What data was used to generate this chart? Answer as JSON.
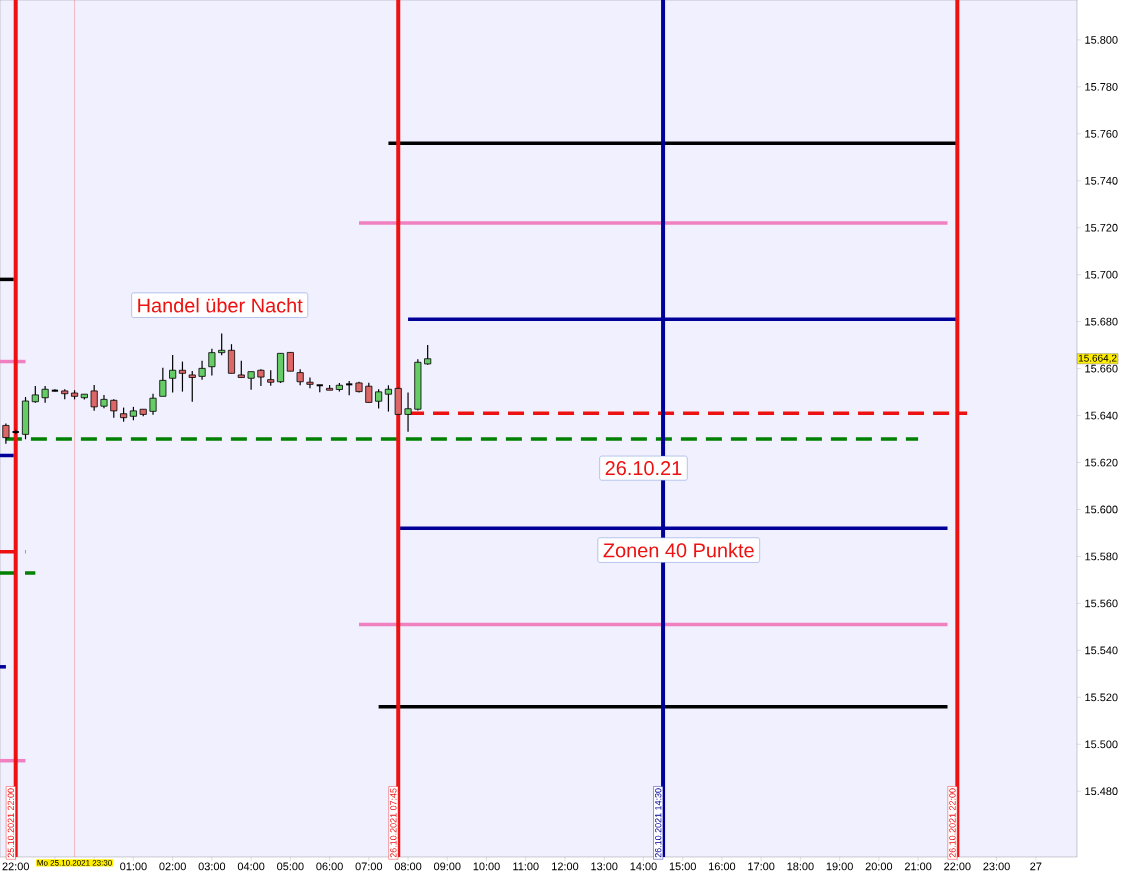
{
  "chart_data": {
    "type": "candlestick",
    "x": [
      "2021-10-25T21:45",
      "2021-10-25T22:00",
      "2021-10-25T22:15",
      "2021-10-25T22:30",
      "2021-10-25T22:45",
      "2021-10-25T23:00",
      "2021-10-25T23:15",
      "2021-10-25T23:30",
      "2021-10-25T23:45",
      "2021-10-26T00:00",
      "2021-10-26T00:15",
      "2021-10-26T00:30",
      "2021-10-26T00:45",
      "2021-10-26T01:00",
      "2021-10-26T01:15",
      "2021-10-26T01:30",
      "2021-10-26T01:45",
      "2021-10-26T02:00",
      "2021-10-26T02:15",
      "2021-10-26T02:30",
      "2021-10-26T02:45",
      "2021-10-26T03:00",
      "2021-10-26T03:15",
      "2021-10-26T03:30",
      "2021-10-26T03:45",
      "2021-10-26T04:00",
      "2021-10-26T04:15",
      "2021-10-26T04:30",
      "2021-10-26T04:45",
      "2021-10-26T05:00",
      "2021-10-26T05:15",
      "2021-10-26T05:30",
      "2021-10-26T05:45",
      "2021-10-26T06:00",
      "2021-10-26T06:15",
      "2021-10-26T06:30",
      "2021-10-26T06:45",
      "2021-10-26T07:00",
      "2021-10-26T07:15",
      "2021-10-26T07:30",
      "2021-10-26T07:45",
      "2021-10-26T08:00",
      "2021-10-26T08:15",
      "2021-10-26T08:30"
    ],
    "ohlc": [
      [
        15635.8,
        15636.6,
        15628,
        15630.6
      ],
      [
        15633,
        15634,
        15632,
        15633
      ],
      [
        15632,
        15647.9,
        15629.9,
        15646.2
      ],
      [
        15645.9,
        15652.6,
        15645.5,
        15648.8
      ],
      [
        15647.6,
        15652.6,
        15645.5,
        15651.2
      ],
      [
        15650.6,
        15651.2,
        15650.2,
        15650.4
      ],
      [
        15650.5,
        15651.2,
        15647,
        15649.3
      ],
      [
        15649.6,
        15650.8,
        15646.9,
        15648.2
      ],
      [
        15647.6,
        15649.1,
        15646.8,
        15649.1
      ],
      [
        15650.5,
        15653,
        15642,
        15643.7
      ],
      [
        15644,
        15648.8,
        15643.1,
        15646.9
      ],
      [
        15646.5,
        15646.9,
        15639.1,
        15642
      ],
      [
        15640.8,
        15643.4,
        15637.4,
        15639.1
      ],
      [
        15639.7,
        15643.7,
        15638,
        15642
      ],
      [
        15642.7,
        15642.7,
        15639.7,
        15640.5
      ],
      [
        15641.8,
        15649.3,
        15640.4,
        15647.4
      ],
      [
        15648.2,
        15660.4,
        15648.2,
        15655
      ],
      [
        15655.9,
        15665.8,
        15649.8,
        15659.3
      ],
      [
        15659.3,
        15663,
        15650.2,
        15658
      ],
      [
        15657.3,
        15659,
        15645.9,
        15656.2
      ],
      [
        15656.7,
        15663.3,
        15655.3,
        15660.1
      ],
      [
        15660.8,
        15668.5,
        15657.1,
        15666.8
      ],
      [
        15666.8,
        15675,
        15665.7,
        15667.8
      ],
      [
        15667.8,
        15670.4,
        15658,
        15658
      ],
      [
        15657.3,
        15663.3,
        15656.2,
        15656.2
      ],
      [
        15655.9,
        15658.7,
        15651,
        15658.7
      ],
      [
        15659.3,
        15659.7,
        15652.6,
        15656.4
      ],
      [
        15655.3,
        15659.3,
        15652.7,
        15654.2
      ],
      [
        15654.4,
        15666.5,
        15653.9,
        15666.5
      ],
      [
        15666.9,
        15666.9,
        15658.9,
        15658.9
      ],
      [
        15658.3,
        15659.7,
        15652.9,
        15654.4
      ],
      [
        15654.2,
        15656.2,
        15651.6,
        15653.3
      ],
      [
        15652.9,
        15652.9,
        15649.9,
        15652.8
      ],
      [
        15651.6,
        15653,
        15650.8,
        15650.8
      ],
      [
        15651.1,
        15653.9,
        15650.2,
        15652.9
      ],
      [
        15653.3,
        15654.7,
        15648.6,
        15653.3
      ],
      [
        15653.9,
        15654.4,
        15649.8,
        15650.2
      ],
      [
        15652.5,
        15654,
        15645.6,
        15645.6
      ],
      [
        15646.1,
        15651.2,
        15643,
        15650.1
      ],
      [
        15649.1,
        15652.9,
        15641.7,
        15651.2
      ],
      [
        15651.6,
        15651.6,
        15640.5,
        15640.5
      ],
      [
        15640.5,
        15649.8,
        15633.1,
        15642.9
      ],
      [
        15642.7,
        15664,
        15642.2,
        15662.7
      ],
      [
        15662,
        15670.1,
        15661.6,
        15664.2
      ]
    ],
    "series": [
      {
        "type": "line",
        "x": [
          "2021-10-26T07:30",
          "2021-10-26T22:00"
        ],
        "values": [
          15756,
          15756
        ],
        "color": "#000000",
        "line_style": "solid"
      },
      {
        "type": "line",
        "x": [
          "2021-10-26T06:45",
          "2021-10-26T21:45"
        ],
        "values": [
          15722,
          15722
        ],
        "color": "#f080c0",
        "line_style": "solid"
      },
      {
        "type": "line",
        "x": [
          "2021-10-26T08:00",
          "2021-10-26T22:00"
        ],
        "values": [
          15681,
          15681
        ],
        "color": "#000099",
        "line_style": "solid"
      },
      {
        "type": "line",
        "x": [
          "2021-10-26T08:00",
          "2021-10-26T22:15"
        ],
        "values": [
          15641,
          15641
        ],
        "color": "#ee1111",
        "line_style": "dashed"
      },
      {
        "type": "line",
        "x": [
          "2021-10-25T21:45",
          "2021-10-26T21:00"
        ],
        "values": [
          15630,
          15630
        ],
        "color": "#008000",
        "line_style": "dashed"
      },
      {
        "type": "line",
        "x": [
          "2021-10-26T07:45",
          "2021-10-26T21:45"
        ],
        "values": [
          15592,
          15592
        ],
        "color": "#000099",
        "line_style": "solid"
      },
      {
        "type": "line",
        "x": [
          "2021-10-26T06:45",
          "2021-10-26T21:45"
        ],
        "values": [
          15551,
          15551
        ],
        "color": "#f080c0",
        "line_style": "solid"
      },
      {
        "type": "line",
        "x": [
          "2021-10-26T07:15",
          "2021-10-26T21:45"
        ],
        "values": [
          15516,
          15516
        ],
        "color": "#000000",
        "line_style": "solid"
      },
      {
        "type": "line",
        "x": [
          "2021-10-25T21:36",
          "2021-10-25T21:57"
        ],
        "values": [
          15698,
          15698
        ],
        "color": "#000000",
        "line_style": "solid"
      },
      {
        "type": "line",
        "x": [
          "2021-10-25T21:36",
          "2021-10-25T22:15"
        ],
        "values": [
          15663,
          15663
        ],
        "color": "#f080c0",
        "line_style": "solid"
      },
      {
        "type": "line",
        "x": [
          "2021-10-25T21:36",
          "2021-10-25T21:57"
        ],
        "values": [
          15623,
          15623
        ],
        "color": "#000099",
        "line_style": "solid"
      },
      {
        "type": "line",
        "x": [
          "2021-10-25T21:36",
          "2021-10-25T22:15"
        ],
        "values": [
          15582,
          15582
        ],
        "color": "#ee1111",
        "line_style": "dashed"
      },
      {
        "type": "line",
        "x": [
          "2021-10-25T21:36",
          "2021-10-25T22:30"
        ],
        "values": [
          15573,
          15573
        ],
        "color": "#008000",
        "line_style": "dashed"
      },
      {
        "type": "line",
        "x": [
          "2021-10-25T21:36",
          "2021-10-25T21:45"
        ],
        "values": [
          15533,
          15533
        ],
        "color": "#000099",
        "line_style": "solid"
      },
      {
        "type": "line",
        "x": [
          "2021-10-25T21:36",
          "2021-10-25T22:15"
        ],
        "values": [
          15493,
          15493
        ],
        "color": "#f080c0",
        "line_style": "solid"
      }
    ],
    "ref_lines": [
      {
        "axis": "x",
        "value": "2021-10-25T22:00",
        "label": "25.10.2021 22:00",
        "color": "#ee1111"
      },
      {
        "axis": "x",
        "value": "2021-10-25T23:30",
        "color": "#f08080"
      },
      {
        "axis": "x",
        "value": "2021-10-26T07:45",
        "label": "26.10.2021 07:45",
        "color": "#ee1111"
      },
      {
        "axis": "x",
        "value": "2021-10-26T14:30",
        "label": "26.10.2021 14:30",
        "color": "#000099"
      },
      {
        "axis": "x",
        "value": "2021-10-26T22:00",
        "label": "26.10.2021 22:00",
        "color": "#ee1111"
      }
    ],
    "annotations": [
      "Handel über Nacht",
      "26.10.21",
      "Zonen 40 Punkte",
      "Mo 25.10.2021 23:30",
      "15.664,2"
    ],
    "xlim": [
      "2021-10-25T21:36",
      "2021-10-27T01:03"
    ],
    "ylim": [
      15452,
      15817
    ],
    "xticks": [
      {
        "value": "2021-10-25T22:00",
        "label": "22:00"
      },
      {
        "value": "2021-10-25T23:00",
        "label": null
      },
      {
        "value": "2021-10-26T00:00",
        "label": null
      },
      {
        "value": "2021-10-26T01:00",
        "label": "01:00"
      },
      {
        "value": "2021-10-26T02:00",
        "label": "02:00"
      },
      {
        "value": "2021-10-26T03:00",
        "label": "03:00"
      },
      {
        "value": "2021-10-26T04:00",
        "label": "04:00"
      },
      {
        "value": "2021-10-26T05:00",
        "label": "05:00"
      },
      {
        "value": "2021-10-26T06:00",
        "label": "06:00"
      },
      {
        "value": "2021-10-26T07:00",
        "label": "07:00"
      },
      {
        "value": "2021-10-26T08:00",
        "label": "08:00"
      },
      {
        "value": "2021-10-26T09:00",
        "label": "09:00"
      },
      {
        "value": "2021-10-26T10:00",
        "label": "10:00"
      },
      {
        "value": "2021-10-26T11:00",
        "label": "11:00"
      },
      {
        "value": "2021-10-26T12:00",
        "label": "12:00"
      },
      {
        "value": "2021-10-26T13:00",
        "label": "13:00"
      },
      {
        "value": "2021-10-26T14:00",
        "label": "14:00"
      },
      {
        "value": "2021-10-26T15:00",
        "label": "15:00"
      },
      {
        "value": "2021-10-26T16:00",
        "label": "16:00"
      },
      {
        "value": "2021-10-26T17:00",
        "label": "17:00"
      },
      {
        "value": "2021-10-26T18:00",
        "label": "18:00"
      },
      {
        "value": "2021-10-26T19:00",
        "label": "19:00"
      },
      {
        "value": "2021-10-26T20:00",
        "label": "20:00"
      },
      {
        "value": "2021-10-26T21:00",
        "label": "21:00"
      },
      {
        "value": "2021-10-26T22:00",
        "label": "22:00"
      },
      {
        "value": "2021-10-26T23:00",
        "label": "23:00"
      },
      {
        "value": "2021-10-27T00:00",
        "label": "27"
      }
    ],
    "yticks": [
      {
        "value": 15480,
        "label": "15.480"
      },
      {
        "value": 15500,
        "label": "15.500"
      },
      {
        "value": 15520,
        "label": "15.520"
      },
      {
        "value": 15540,
        "label": "15.540"
      },
      {
        "value": 15560,
        "label": "15.560"
      },
      {
        "value": 15580,
        "label": "15.580"
      },
      {
        "value": 15600,
        "label": "15.600"
      },
      {
        "value": 15620,
        "label": "15.620"
      },
      {
        "value": 15640,
        "label": "15.640"
      },
      {
        "value": 15660,
        "label": "15.660"
      },
      {
        "value": 15680,
        "label": "15.680"
      },
      {
        "value": 15700,
        "label": "15.700"
      },
      {
        "value": 15720,
        "label": "15.720"
      },
      {
        "value": 15740,
        "label": "15.740"
      },
      {
        "value": 15760,
        "label": "15.760"
      },
      {
        "value": 15780,
        "label": "15.780"
      },
      {
        "value": 15800,
        "label": "15.800"
      }
    ]
  }
}
